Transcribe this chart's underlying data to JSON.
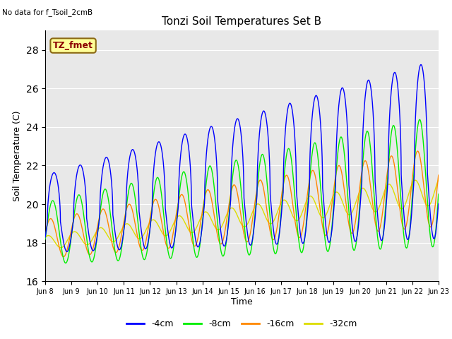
{
  "title": "Tonzi Soil Temperatures Set B",
  "xlabel": "Time",
  "ylabel": "Soil Temperature (C)",
  "no_data_text": "No data for f_Tsoil_2cmB",
  "tz_fmet_label": "TZ_fmet",
  "ylim": [
    16,
    29
  ],
  "yticks": [
    16,
    18,
    20,
    22,
    24,
    26,
    28
  ],
  "legend_labels": [
    "-4cm",
    "-8cm",
    "-16cm",
    "-32cm"
  ],
  "line_colors": [
    "#0000ff",
    "#00ee00",
    "#ff8800",
    "#dddd00"
  ],
  "bg_color": "#e8e8e8",
  "xtick_labels": [
    "Jun 8",
    "Jun 9",
    "Jun 10",
    "Jun 11",
    "Jun 12",
    "Jun 13",
    "Jun 14",
    "Jun 15",
    "Jun 16",
    "Jun 17",
    "Jun 18",
    "Jun 19",
    "Jun 20",
    "Jun 21",
    "Jun 22",
    "Jun 23"
  ]
}
